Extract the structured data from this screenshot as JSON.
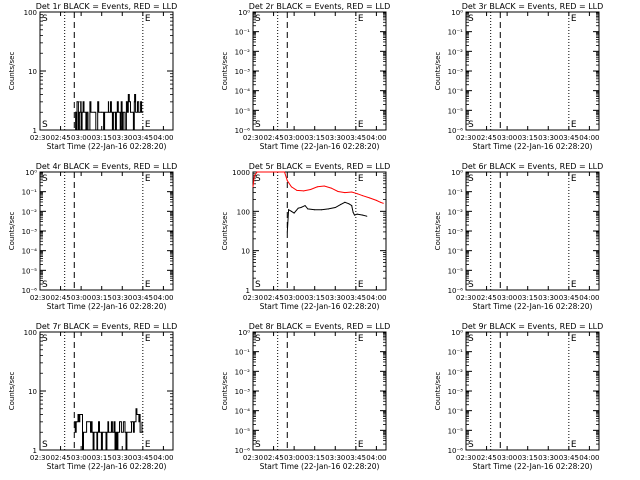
{
  "figure": {
    "title_template": "Det {det} BLACK = Events, RED = LLD",
    "ylabel": "Counts/sec",
    "xlabel": "Start Time (22-Jan-16 02:28:20)",
    "xticks": [
      "02:30",
      "02:45",
      "03:00",
      "03:15",
      "03:30",
      "03:45",
      "04:00"
    ],
    "marker_s": "S",
    "marker_e": "E",
    "colors": {
      "events": "#000000",
      "lld": "#ff0000",
      "background": "#ffffff"
    }
  },
  "chart_data": [
    {
      "type": "line",
      "detector": "1r",
      "title": "Det 1r BLACK = Events, RED = LLD",
      "xlabel": "Start Time (22-Jan-16 02:28:20)",
      "ylabel": "Counts/sec",
      "xlim": [
        "02:30",
        "04:07"
      ],
      "yscale": "log",
      "ylim": [
        1,
        100
      ],
      "yticks": [
        {
          "v": 1,
          "label": "1"
        },
        {
          "v": 10,
          "label": "10"
        },
        {
          "v": 100,
          "label": "100"
        }
      ],
      "dotted_lines": [
        "02:48",
        "03:45"
      ],
      "dashed_lines": [
        "02:55"
      ],
      "markers": {
        "S": "02:30",
        "E": "03:45"
      },
      "series": [
        {
          "color": "#000000",
          "noisy": true,
          "x": [
            "02:55",
            "02:56",
            "02:57",
            "02:58",
            "02:59",
            "03:00",
            "03:05",
            "03:10",
            "03:15",
            "03:20",
            "03:25",
            "03:30",
            "03:33",
            "03:36",
            "03:39",
            "03:42",
            "03:45"
          ],
          "y": [
            1,
            2,
            3,
            2,
            3,
            2,
            2,
            2,
            2,
            2,
            2,
            2,
            3,
            2,
            3,
            2,
            2
          ]
        }
      ]
    },
    {
      "type": "line",
      "detector": "2r",
      "title": "Det 2r BLACK = Events, RED = LLD",
      "xlabel": "Start Time (22-Jan-16 02:28:20)",
      "ylabel": "Counts/sec",
      "xlim": [
        "02:30",
        "04:07"
      ],
      "yscale": "log",
      "ylim": [
        1e-06,
        1
      ],
      "yticks": [
        {
          "v": 1,
          "label": "10⁰"
        },
        {
          "v": 0.1,
          "label": "10⁻¹"
        },
        {
          "v": 0.01,
          "label": "10⁻²"
        },
        {
          "v": 0.001,
          "label": "10⁻³"
        },
        {
          "v": 0.0001,
          "label": "10⁻⁴"
        },
        {
          "v": 1e-05,
          "label": "10⁻⁵"
        },
        {
          "v": 1e-06,
          "label": "10⁻⁶"
        }
      ],
      "dotted_lines": [
        "02:48",
        "03:45",
        "04:07"
      ],
      "dashed_lines": [
        "02:55"
      ],
      "markers": {
        "S": "02:30",
        "E": "03:45"
      },
      "series": []
    },
    {
      "type": "line",
      "detector": "3r",
      "title": "Det 3r BLACK = Events, RED = LLD",
      "xlabel": "Start Time (22-Jan-16 02:28:20)",
      "ylabel": "Counts/sec",
      "xlim": [
        "02:30",
        "04:07"
      ],
      "yscale": "log",
      "ylim": [
        1e-06,
        1
      ],
      "yticks": [
        {
          "v": 1,
          "label": "10⁰"
        },
        {
          "v": 0.1,
          "label": "10⁻¹"
        },
        {
          "v": 0.01,
          "label": "10⁻²"
        },
        {
          "v": 0.001,
          "label": "10⁻³"
        },
        {
          "v": 0.0001,
          "label": "10⁻⁴"
        },
        {
          "v": 1e-05,
          "label": "10⁻⁵"
        },
        {
          "v": 1e-06,
          "label": "10⁻⁶"
        }
      ],
      "dotted_lines": [
        "02:48",
        "03:45",
        "04:07"
      ],
      "dashed_lines": [
        "02:55"
      ],
      "markers": {
        "S": "02:30",
        "E": "03:45"
      },
      "series": []
    },
    {
      "type": "line",
      "detector": "4r",
      "title": "Det 4r BLACK = Events, RED = LLD",
      "xlabel": "Start Time (22-Jan-16 02:28:20)",
      "ylabel": "Counts/sec",
      "xlim": [
        "02:30",
        "04:07"
      ],
      "yscale": "log",
      "ylim": [
        1e-06,
        1
      ],
      "yticks": [
        {
          "v": 1,
          "label": "10⁰"
        },
        {
          "v": 0.1,
          "label": "10⁻¹"
        },
        {
          "v": 0.01,
          "label": "10⁻²"
        },
        {
          "v": 0.001,
          "label": "10⁻³"
        },
        {
          "v": 0.0001,
          "label": "10⁻⁴"
        },
        {
          "v": 1e-05,
          "label": "10⁻⁵"
        },
        {
          "v": 1e-06,
          "label": "10⁻⁶"
        }
      ],
      "dotted_lines": [
        "02:48",
        "03:45",
        "04:07"
      ],
      "dashed_lines": [
        "02:55"
      ],
      "markers": {
        "S": "02:30",
        "E": "03:45"
      },
      "series": []
    },
    {
      "type": "line",
      "detector": "5r",
      "title": "Det 5r BLACK = Events, RED = LLD",
      "xlabel": "Start Time (22-Jan-16 02:28:20)",
      "ylabel": "Counts/sec",
      "xlim": [
        "02:30",
        "04:07"
      ],
      "yscale": "log",
      "ylim": [
        1,
        1000
      ],
      "yticks": [
        {
          "v": 1,
          "label": "1"
        },
        {
          "v": 10,
          "label": "10"
        },
        {
          "v": 100,
          "label": "100"
        },
        {
          "v": 1000,
          "label": "1000"
        }
      ],
      "dotted_lines": [
        "02:48",
        "03:45",
        "04:07"
      ],
      "dashed_lines": [
        "02:55"
      ],
      "markers": {
        "S": "02:30",
        "E": "03:45"
      },
      "series": [
        {
          "color": "#ff0000",
          "noisy": false,
          "x": [
            "02:30",
            "02:31",
            "02:33",
            "02:53",
            "02:55",
            "02:58",
            "03:02",
            "03:07",
            "03:12",
            "03:17",
            "03:22",
            "03:27",
            "03:32",
            "03:37",
            "03:42",
            "03:46",
            "03:50",
            "03:55",
            "04:00",
            "04:03",
            "04:05"
          ],
          "y": [
            420,
            800,
            1000,
            1000,
            600,
            420,
            340,
            330,
            360,
            420,
            440,
            390,
            320,
            300,
            310,
            280,
            250,
            220,
            190,
            170,
            160
          ]
        },
        {
          "color": "#000000",
          "noisy": false,
          "x": [
            "02:55",
            "02:56",
            "02:58",
            "03:00",
            "03:03",
            "03:05",
            "03:08",
            "03:10",
            "03:15",
            "03:20",
            "03:25",
            "03:30",
            "03:34",
            "03:37",
            "03:40",
            "03:42",
            "03:43",
            "03:44",
            "03:46",
            "03:50",
            "03:53"
          ],
          "y": [
            30,
            110,
            100,
            90,
            120,
            125,
            140,
            115,
            110,
            110,
            115,
            125,
            150,
            170,
            155,
            140,
            95,
            80,
            85,
            80,
            75
          ]
        }
      ]
    },
    {
      "type": "line",
      "detector": "6r",
      "title": "Det 6r BLACK = Events, RED = LLD",
      "xlabel": "Start Time (22-Jan-16 02:28:20)",
      "ylabel": "Counts/sec",
      "xlim": [
        "02:30",
        "04:07"
      ],
      "yscale": "log",
      "ylim": [
        1e-06,
        1
      ],
      "yticks": [
        {
          "v": 1,
          "label": "10⁰"
        },
        {
          "v": 0.1,
          "label": "10⁻¹"
        },
        {
          "v": 0.01,
          "label": "10⁻²"
        },
        {
          "v": 0.001,
          "label": "10⁻³"
        },
        {
          "v": 0.0001,
          "label": "10⁻⁴"
        },
        {
          "v": 1e-05,
          "label": "10⁻⁵"
        },
        {
          "v": 1e-06,
          "label": "10⁻⁶"
        }
      ],
      "dotted_lines": [
        "02:48",
        "03:45",
        "04:07"
      ],
      "dashed_lines": [
        "02:55"
      ],
      "markers": {
        "S": "02:30",
        "E": "03:45"
      },
      "series": []
    },
    {
      "type": "line",
      "detector": "7r",
      "title": "Det 7r BLACK = Events, RED = LLD",
      "xlabel": "Start Time (22-Jan-16 02:28:20)",
      "ylabel": "Counts/sec",
      "xlim": [
        "02:30",
        "04:07"
      ],
      "yscale": "log",
      "ylim": [
        1,
        100
      ],
      "yticks": [
        {
          "v": 1,
          "label": "1"
        },
        {
          "v": 10,
          "label": "10"
        },
        {
          "v": 100,
          "label": "100"
        }
      ],
      "dotted_lines": [
        "02:48",
        "03:45"
      ],
      "dashed_lines": [
        "02:55"
      ],
      "markers": {
        "S": "02:30",
        "E": "03:45"
      },
      "series": [
        {
          "color": "#000000",
          "noisy": true,
          "x": [
            "02:55",
            "02:57",
            "02:59",
            "03:01",
            "03:04",
            "03:08",
            "03:12",
            "03:16",
            "03:20",
            "03:24",
            "03:28",
            "03:32",
            "03:36",
            "03:40",
            "03:43",
            "03:45"
          ],
          "y": [
            3,
            3,
            4,
            2,
            3,
            2,
            2,
            2,
            2,
            2,
            3,
            2,
            3,
            4,
            3,
            2
          ]
        }
      ]
    },
    {
      "type": "line",
      "detector": "8r",
      "title": "Det 8r BLACK = Events, RED = LLD",
      "xlabel": "Start Time (22-Jan-16 02:28:20)",
      "ylabel": "Counts/sec",
      "xlim": [
        "02:30",
        "04:07"
      ],
      "yscale": "log",
      "ylim": [
        1e-06,
        1
      ],
      "yticks": [
        {
          "v": 1,
          "label": "10⁰"
        },
        {
          "v": 0.1,
          "label": "10⁻¹"
        },
        {
          "v": 0.01,
          "label": "10⁻²"
        },
        {
          "v": 0.001,
          "label": "10⁻³"
        },
        {
          "v": 0.0001,
          "label": "10⁻⁴"
        },
        {
          "v": 1e-05,
          "label": "10⁻⁵"
        },
        {
          "v": 1e-06,
          "label": "10⁻⁶"
        }
      ],
      "dotted_lines": [
        "02:48",
        "03:45",
        "04:07"
      ],
      "dashed_lines": [
        "02:55"
      ],
      "markers": {
        "S": "02:30",
        "E": "03:45"
      },
      "series": []
    },
    {
      "type": "line",
      "detector": "9r",
      "title": "Det 9r BLACK = Events, RED = LLD",
      "xlabel": "Start Time (22-Jan-16 02:28:20)",
      "ylabel": "Counts/sec",
      "xlim": [
        "02:30",
        "04:07"
      ],
      "yscale": "log",
      "ylim": [
        1e-06,
        1
      ],
      "yticks": [
        {
          "v": 1,
          "label": "10⁰"
        },
        {
          "v": 0.1,
          "label": "10⁻¹"
        },
        {
          "v": 0.01,
          "label": "10⁻²"
        },
        {
          "v": 0.001,
          "label": "10⁻³"
        },
        {
          "v": 0.0001,
          "label": "10⁻⁴"
        },
        {
          "v": 1e-05,
          "label": "10⁻⁵"
        },
        {
          "v": 1e-06,
          "label": "10⁻⁶"
        }
      ],
      "dotted_lines": [
        "02:48",
        "03:45",
        "04:07"
      ],
      "dashed_lines": [
        "02:55"
      ],
      "markers": {
        "S": "02:30",
        "E": "03:45"
      },
      "series": []
    }
  ]
}
